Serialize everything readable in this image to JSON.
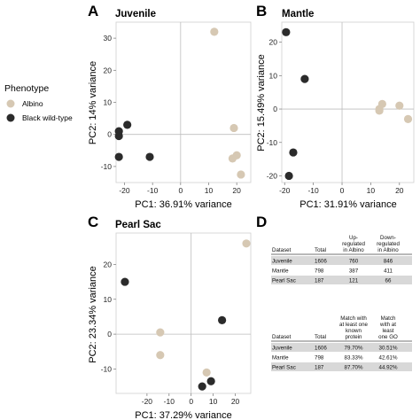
{
  "legend": {
    "title": "Phenotype",
    "items": [
      {
        "label": "Albino",
        "color": "#d6c8b3"
      },
      {
        "label": "Black wild-type",
        "color": "#2b2b2b"
      }
    ]
  },
  "chart_data": [
    {
      "letter": "A",
      "title": "Juvenile",
      "type": "scatter",
      "xlabel": "PC1: 36.91% variance",
      "ylabel": "PC2: 14% variance",
      "xlim": [
        -23,
        25
      ],
      "ylim": [
        -15,
        35
      ],
      "xticks": [
        -20,
        -10,
        0,
        10,
        20
      ],
      "yticks": [
        -10,
        0,
        10,
        20,
        30
      ],
      "grid": false,
      "series": [
        {
          "name": "Albino",
          "color": "#d6c8b3",
          "points": [
            [
              12,
              32
            ],
            [
              19,
              2
            ],
            [
              18.5,
              -7.5
            ],
            [
              20,
              -6.5
            ],
            [
              21.5,
              -12.5
            ]
          ]
        },
        {
          "name": "Black wild-type",
          "color": "#2b2b2b",
          "points": [
            [
              -22,
              1
            ],
            [
              -22,
              -0.5
            ],
            [
              -19,
              3
            ],
            [
              -22,
              -7
            ],
            [
              -11,
              -7
            ]
          ]
        }
      ]
    },
    {
      "letter": "B",
      "title": "Mantle",
      "type": "scatter",
      "xlabel": "PC1: 31.91% variance",
      "ylabel": "PC2: 15.49% variance",
      "xlim": [
        -21,
        25
      ],
      "ylim": [
        -22,
        26
      ],
      "xticks": [
        -20,
        -10,
        0,
        10,
        20
      ],
      "yticks": [
        -20,
        -10,
        0,
        10,
        20
      ],
      "grid": false,
      "series": [
        {
          "name": "Albino",
          "color": "#d6c8b3",
          "points": [
            [
              13,
              -0.5
            ],
            [
              14,
              1.5
            ],
            [
              20,
              1
            ],
            [
              23,
              -3
            ],
            [
              13,
              0
            ]
          ]
        },
        {
          "name": "Black wild-type",
          "color": "#2b2b2b",
          "points": [
            [
              -19.5,
              23
            ],
            [
              -13,
              9
            ],
            [
              -17,
              -13
            ],
            [
              -18.5,
              -20
            ]
          ]
        }
      ]
    },
    {
      "letter": "C",
      "title": "Pearl Sac",
      "type": "scatter",
      "xlabel": "PC1: 37.29% variance",
      "ylabel": "PC2: 23.34% variance",
      "xlim": [
        -34,
        27
      ],
      "ylim": [
        -17,
        29
      ],
      "xticks": [
        -20,
        -10,
        0,
        10,
        20
      ],
      "yticks": [
        -10,
        0,
        10,
        20
      ],
      "grid": false,
      "series": [
        {
          "name": "Albino",
          "color": "#d6c8b3",
          "points": [
            [
              25,
              26
            ],
            [
              -14,
              0.5
            ],
            [
              -14,
              -6
            ],
            [
              7,
              -11
            ]
          ]
        },
        {
          "name": "Black wild-type",
          "color": "#2b2b2b",
          "points": [
            [
              -30,
              15
            ],
            [
              14,
              4
            ],
            [
              5,
              -15
            ],
            [
              9,
              -13.5
            ]
          ]
        }
      ]
    },
    {
      "letter": "D",
      "type": "table",
      "tables": [
        {
          "columns": [
            "Dataset",
            "Total",
            "Up-\nregulated\nin Albino",
            "Down-\nregulated\nin Albino"
          ],
          "rows": [
            [
              "Juvenile",
              "1606",
              "760",
              "846"
            ],
            [
              "Mantle",
              "798",
              "387",
              "411"
            ],
            [
              "Pearl Sac",
              "187",
              "121",
              "66"
            ]
          ]
        },
        {
          "columns": [
            "Dataset",
            "Total",
            "Match with\nat least one\nknown\nprotein",
            "Match\nwith at\nleast\none GO"
          ],
          "rows": [
            [
              "Juvenile",
              "1606",
              "79.70%",
              "30.51%"
            ],
            [
              "Mantle",
              "798",
              "83.33%",
              "42.61%"
            ],
            [
              "Pearl Sac",
              "187",
              "87.70%",
              "44.92%"
            ]
          ]
        }
      ]
    }
  ]
}
